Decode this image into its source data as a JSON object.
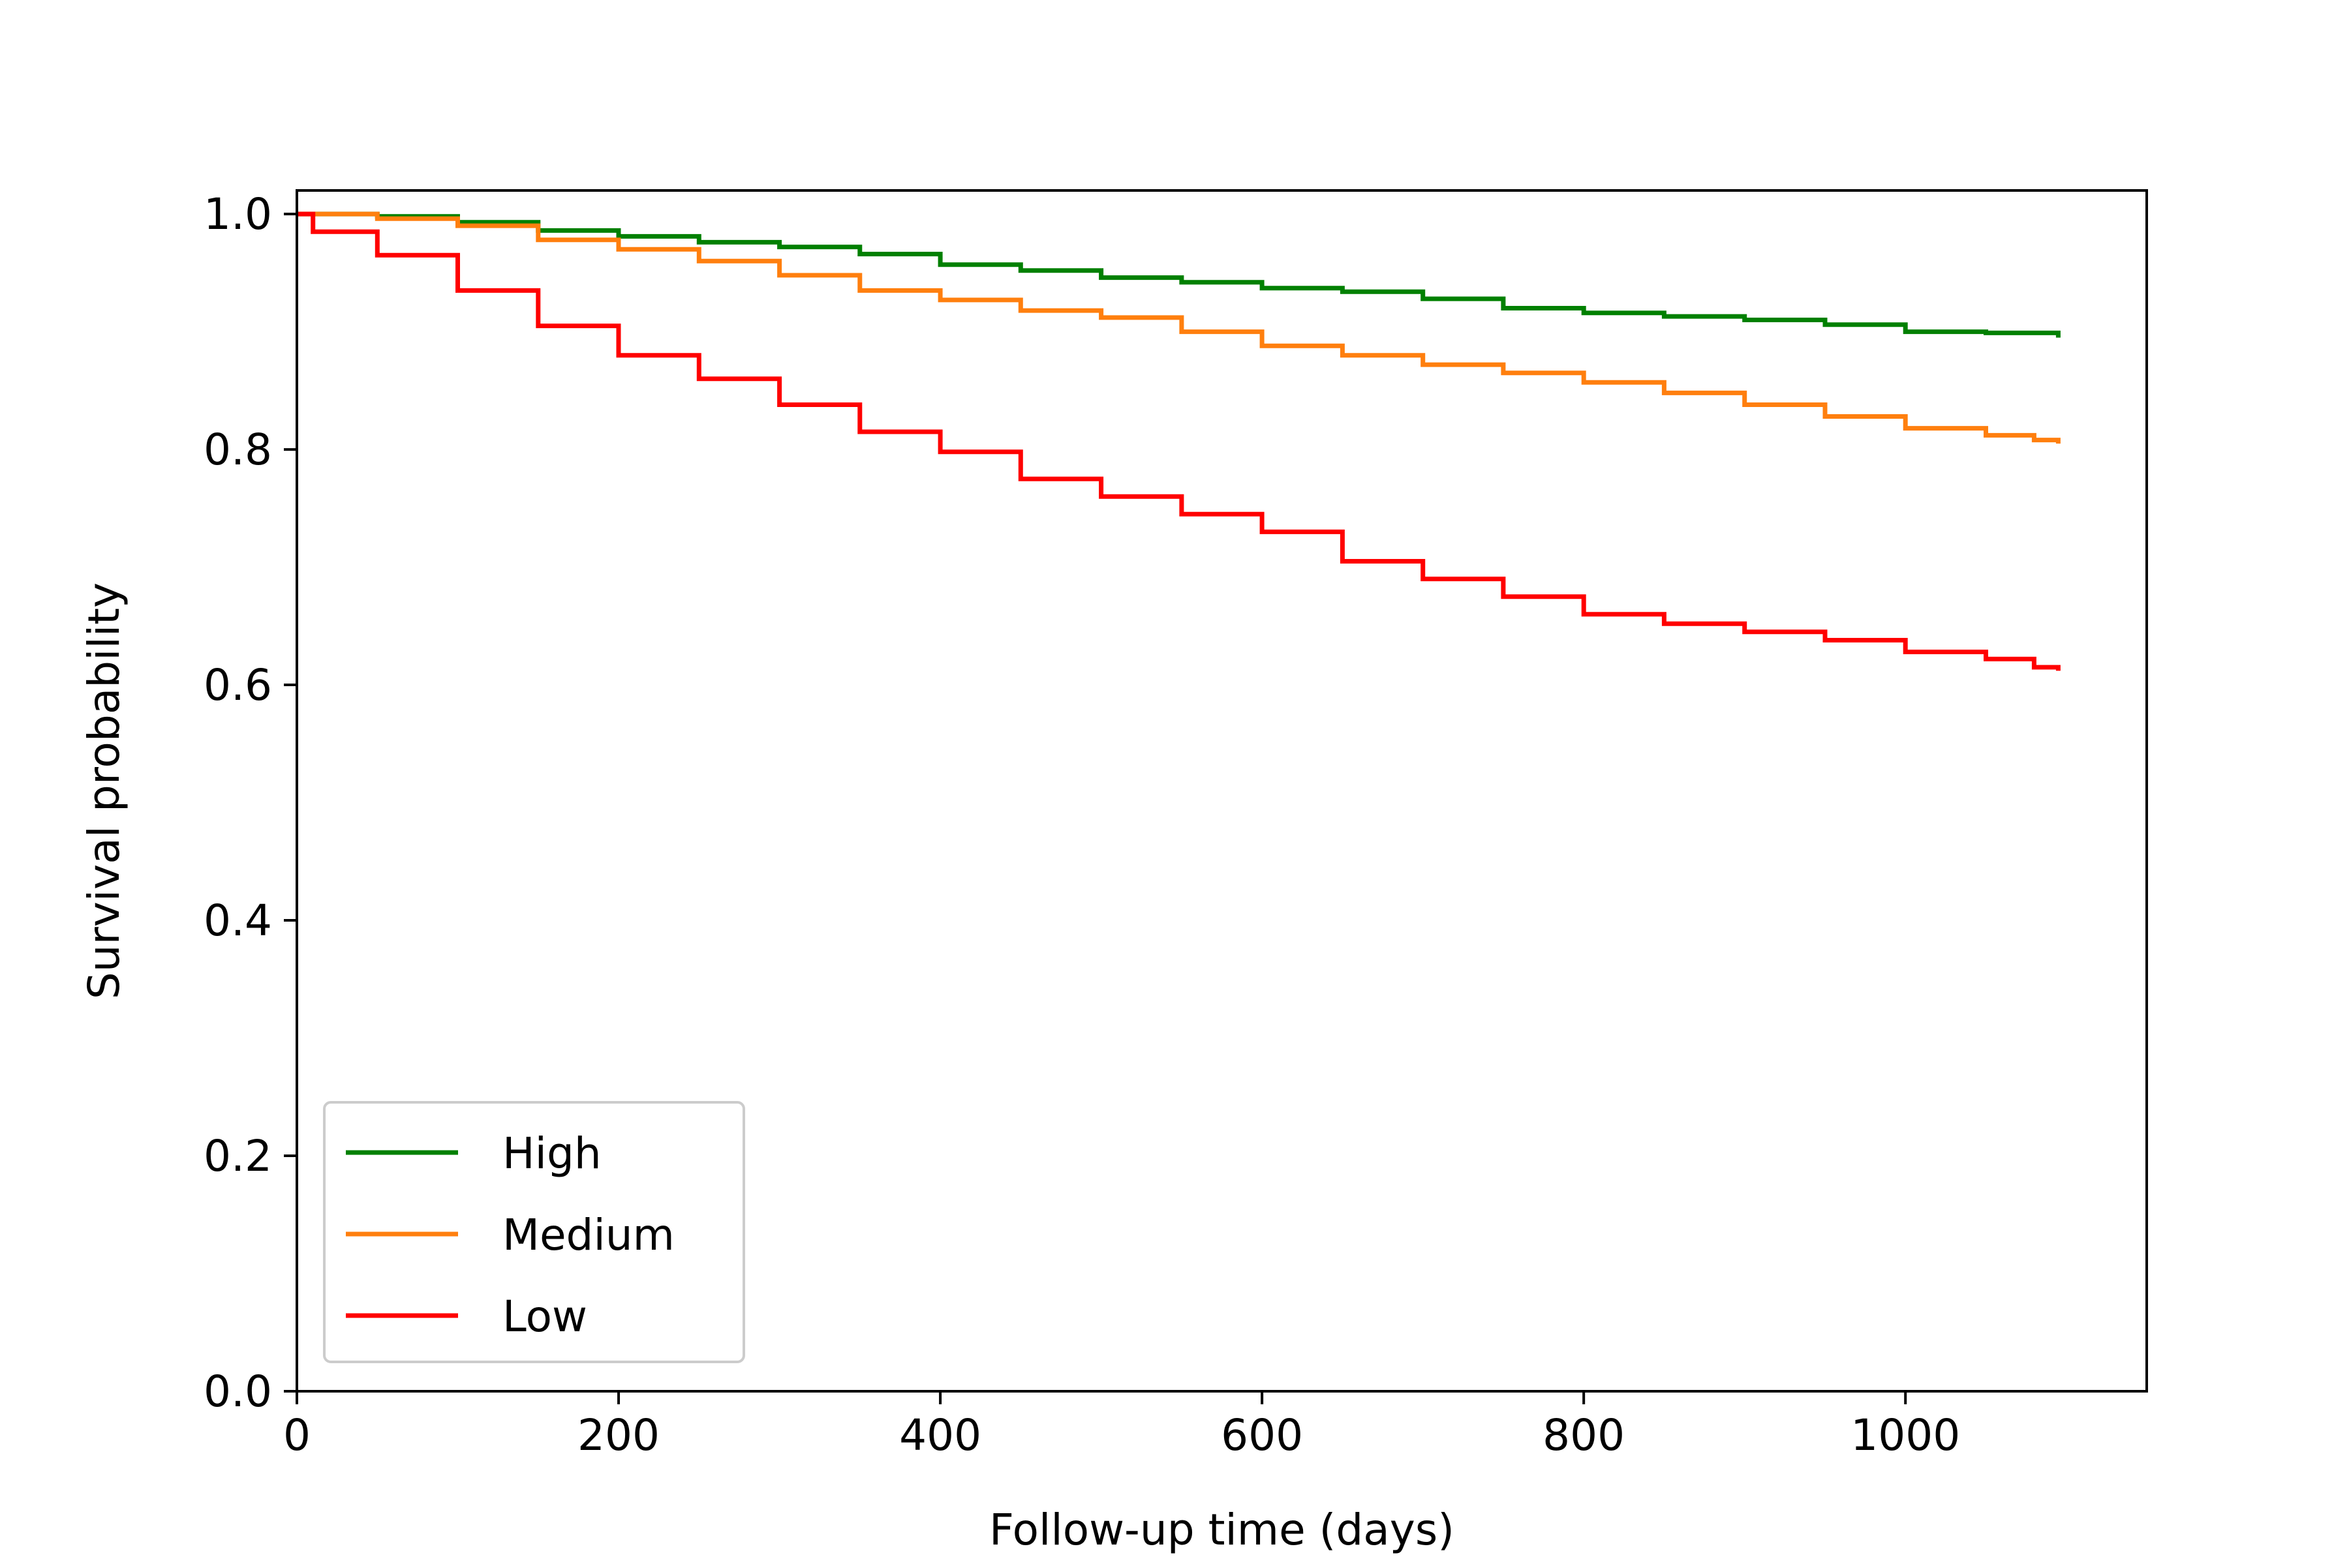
{
  "chart_data": {
    "type": "line",
    "title": "",
    "xlabel": "Follow-up time (days)",
    "ylabel": "Survival probability",
    "xlim": [
      0,
      1150
    ],
    "ylim": [
      0.0,
      1.02
    ],
    "xticks": [
      0,
      200,
      400,
      600,
      800,
      1000
    ],
    "xtick_labels": [
      "0",
      "200",
      "400",
      "600",
      "800",
      "1000"
    ],
    "yticks": [
      0.0,
      0.2,
      0.4,
      0.6,
      0.8,
      1.0
    ],
    "ytick_labels": [
      "0.0",
      "0.2",
      "0.4",
      "0.6",
      "0.8",
      "1.0"
    ],
    "grid": false,
    "legend_position": "lower-left",
    "step": true,
    "series": [
      {
        "name": "High",
        "color": "#008000",
        "x": [
          0,
          50,
          100,
          150,
          200,
          250,
          300,
          350,
          400,
          450,
          500,
          550,
          600,
          650,
          700,
          750,
          800,
          850,
          900,
          950,
          1000,
          1050,
          1080,
          1095
        ],
        "y": [
          1.0,
          0.998,
          0.993,
          0.986,
          0.981,
          0.976,
          0.972,
          0.966,
          0.957,
          0.952,
          0.946,
          0.942,
          0.937,
          0.934,
          0.928,
          0.92,
          0.916,
          0.913,
          0.91,
          0.906,
          0.9,
          0.899,
          0.899,
          0.895
        ]
      },
      {
        "name": "Medium",
        "color": "#ff7f0e",
        "x": [
          0,
          50,
          100,
          150,
          200,
          250,
          300,
          350,
          400,
          450,
          500,
          550,
          600,
          650,
          700,
          750,
          800,
          850,
          900,
          950,
          1000,
          1050,
          1080,
          1095
        ],
        "y": [
          1.0,
          0.996,
          0.99,
          0.978,
          0.97,
          0.96,
          0.948,
          0.935,
          0.927,
          0.918,
          0.912,
          0.9,
          0.888,
          0.88,
          0.872,
          0.865,
          0.857,
          0.848,
          0.838,
          0.828,
          0.818,
          0.812,
          0.808,
          0.805
        ]
      },
      {
        "name": "Low",
        "color": "#ff0000",
        "x": [
          0,
          10,
          50,
          100,
          150,
          200,
          250,
          300,
          350,
          400,
          450,
          500,
          550,
          600,
          650,
          700,
          750,
          800,
          850,
          900,
          950,
          1000,
          1050,
          1080,
          1095
        ],
        "y": [
          1.0,
          0.985,
          0.965,
          0.935,
          0.905,
          0.88,
          0.86,
          0.838,
          0.815,
          0.798,
          0.775,
          0.76,
          0.745,
          0.73,
          0.705,
          0.69,
          0.675,
          0.66,
          0.652,
          0.645,
          0.638,
          0.628,
          0.622,
          0.615,
          0.612
        ]
      }
    ]
  }
}
